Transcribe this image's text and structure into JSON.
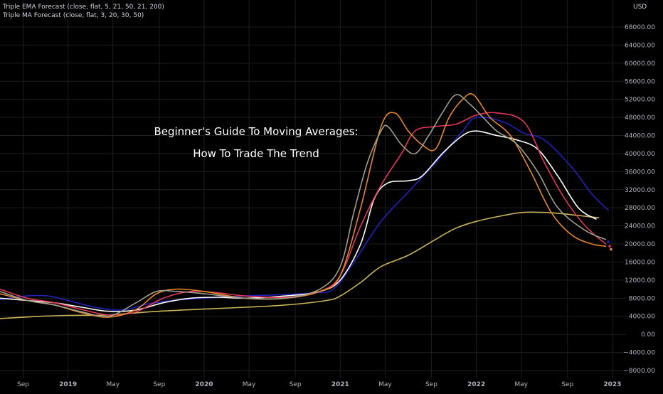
{
  "legend": {
    "line1": "Triple EMA Forecast (close, flat, 5, 21, 50, 21, 200)",
    "line2": "Triple MA Forecast (close, flat, 3, 20, 30, 50)"
  },
  "headline": {
    "line1": "Beginner's Guide To Moving Averages:",
    "line2": "How To Trade The Trend"
  },
  "axis": {
    "currency": "USD"
  },
  "colors": {
    "background": "#000000",
    "grid": "#1e1e1e",
    "axis_text": "#b2b5be"
  },
  "chart_data": {
    "type": "line",
    "title": "",
    "xlabel": "",
    "ylabel": "",
    "ylim": [
      -9000,
      72000
    ],
    "xlim": [
      2018.5,
      2023.1
    ],
    "x_ticks": [
      {
        "label": "Sep",
        "x": 2018.67,
        "bold": false
      },
      {
        "label": "2019",
        "x": 2019.0,
        "bold": true
      },
      {
        "label": "May",
        "x": 2019.33,
        "bold": false
      },
      {
        "label": "Sep",
        "x": 2019.67,
        "bold": false
      },
      {
        "label": "2020",
        "x": 2020.0,
        "bold": true
      },
      {
        "label": "May",
        "x": 2020.33,
        "bold": false
      },
      {
        "label": "Sep",
        "x": 2020.67,
        "bold": false
      },
      {
        "label": "2021",
        "x": 2021.0,
        "bold": true
      },
      {
        "label": "May",
        "x": 2021.33,
        "bold": false
      },
      {
        "label": "Sep",
        "x": 2021.67,
        "bold": false
      },
      {
        "label": "2022",
        "x": 2022.0,
        "bold": true
      },
      {
        "label": "May",
        "x": 2022.33,
        "bold": false
      },
      {
        "label": "Sep",
        "x": 2022.67,
        "bold": false
      },
      {
        "label": "2023",
        "x": 2023.0,
        "bold": true
      }
    ],
    "y_ticks": [
      {
        "label": "68000.00",
        "y": 68000
      },
      {
        "label": "64000.00",
        "y": 64000
      },
      {
        "label": "60000.00",
        "y": 60000
      },
      {
        "label": "56000.00",
        "y": 56000
      },
      {
        "label": "52000.00",
        "y": 52000
      },
      {
        "label": "48000.00",
        "y": 48000
      },
      {
        "label": "44000.00",
        "y": 44000
      },
      {
        "label": "40000.00",
        "y": 40000
      },
      {
        "label": "36000.00",
        "y": 36000
      },
      {
        "label": "32000.00",
        "y": 32000
      },
      {
        "label": "28000.00",
        "y": 28000
      },
      {
        "label": "24000.00",
        "y": 24000
      },
      {
        "label": "20000.00",
        "y": 20000
      },
      {
        "label": "16000.00",
        "y": 16000
      },
      {
        "label": "12000.00",
        "y": 12000
      },
      {
        "label": "8000.00",
        "y": 8000
      },
      {
        "label": "4000.00",
        "y": 4000
      },
      {
        "label": "0.00",
        "y": 0
      },
      {
        "label": "−4000.00",
        "y": -4000
      },
      {
        "label": "−8000.00",
        "y": -8000
      }
    ],
    "series": [
      {
        "color": "#c8b45a",
        "x": [
          2018.5,
          2018.8,
          2019.0,
          2019.3,
          2019.6,
          2020.0,
          2020.3,
          2020.6,
          2020.9,
          2021.0,
          2021.15,
          2021.3,
          2021.5,
          2021.7,
          2021.85,
          2022.0,
          2022.2,
          2022.35,
          2022.55,
          2022.75,
          2022.9
        ],
        "y": [
          3500,
          4000,
          4200,
          4300,
          5000,
          5600,
          6000,
          6500,
          7500,
          8500,
          11500,
          15000,
          17500,
          21000,
          23500,
          25000,
          26300,
          27000,
          26900,
          26300,
          25800
        ]
      },
      {
        "color": "#2222bb",
        "x": [
          2018.5,
          2018.7,
          2018.85,
          2019.0,
          2019.2,
          2019.4,
          2019.6,
          2019.8,
          2020.0,
          2020.3,
          2020.6,
          2020.8,
          2020.95,
          2021.1,
          2021.3,
          2021.5,
          2021.7,
          2021.9,
          2022.0,
          2022.2,
          2022.35,
          2022.5,
          2022.7,
          2022.85,
          2022.97
        ],
        "y": [
          7700,
          8500,
          8500,
          7500,
          6000,
          5400,
          6800,
          7600,
          8000,
          8500,
          8800,
          9200,
          10000,
          16000,
          25000,
          31500,
          38000,
          45000,
          48000,
          47000,
          44500,
          43000,
          37000,
          31000,
          27500
        ]
      },
      {
        "color": "#ffffff",
        "x": [
          2018.5,
          2018.7,
          2018.9,
          2019.1,
          2019.3,
          2019.5,
          2019.7,
          2019.9,
          2020.1,
          2020.3,
          2020.6,
          2020.85,
          2021.0,
          2021.15,
          2021.25,
          2021.35,
          2021.5,
          2021.6,
          2021.75,
          2021.9,
          2022.0,
          2022.15,
          2022.3,
          2022.45,
          2022.6,
          2022.75,
          2022.88
        ],
        "y": [
          8000,
          7500,
          7000,
          6000,
          5100,
          5400,
          7000,
          8000,
          8200,
          8000,
          8500,
          9500,
          12000,
          20000,
          30000,
          33500,
          34000,
          35000,
          40000,
          44000,
          45000,
          44000,
          43000,
          41000,
          35000,
          28000,
          25500
        ]
      },
      {
        "color": "#e2365a",
        "x": [
          2018.5,
          2018.7,
          2018.9,
          2019.1,
          2019.3,
          2019.5,
          2019.7,
          2019.9,
          2020.1,
          2020.3,
          2020.6,
          2020.85,
          2021.0,
          2021.15,
          2021.3,
          2021.45,
          2021.55,
          2021.7,
          2021.85,
          2022.0,
          2022.15,
          2022.35,
          2022.5,
          2022.65,
          2022.8,
          2022.95
        ],
        "y": [
          10000,
          8000,
          7000,
          5500,
          4300,
          5000,
          8000,
          9500,
          9200,
          8500,
          8200,
          9500,
          13000,
          24000,
          33000,
          40000,
          45000,
          46000,
          46500,
          48500,
          49000,
          47000,
          38000,
          30000,
          24000,
          20000
        ]
      },
      {
        "color": "#e5872d",
        "x": [
          2018.5,
          2018.7,
          2018.9,
          2019.1,
          2019.3,
          2019.5,
          2019.65,
          2019.8,
          2020.0,
          2020.3,
          2020.6,
          2020.85,
          2021.0,
          2021.15,
          2021.3,
          2021.4,
          2021.5,
          2021.6,
          2021.7,
          2021.8,
          2021.9,
          2021.98,
          2022.1,
          2022.25,
          2022.4,
          2022.55,
          2022.7,
          2022.85,
          2022.95
        ],
        "y": [
          9000,
          7500,
          6500,
          4800,
          3800,
          5500,
          9000,
          10000,
          9500,
          8000,
          8000,
          9500,
          13000,
          28000,
          46000,
          49000,
          45000,
          42000,
          41000,
          48000,
          52000,
          53000,
          48000,
          44000,
          36000,
          27000,
          22000,
          20000,
          19500
        ]
      },
      {
        "color": "#a0a08c",
        "x": [
          2018.5,
          2018.7,
          2018.9,
          2019.1,
          2019.3,
          2019.5,
          2019.65,
          2019.8,
          2020.0,
          2020.3,
          2020.6,
          2020.85,
          2021.0,
          2021.1,
          2021.2,
          2021.3,
          2021.35,
          2021.45,
          2021.55,
          2021.65,
          2021.75,
          2021.85,
          2021.95,
          2022.05,
          2022.15,
          2022.3,
          2022.45,
          2022.6,
          2022.8,
          2022.95
        ],
        "y": [
          9500,
          7500,
          6500,
          5000,
          4000,
          7000,
          9500,
          9500,
          9000,
          8000,
          8000,
          10000,
          15000,
          27000,
          38000,
          45000,
          46000,
          42000,
          40000,
          44000,
          49000,
          53000,
          51000,
          48000,
          45000,
          42000,
          36000,
          28000,
          23000,
          21000
        ]
      }
    ],
    "forecast_dots": [
      {
        "x": 2022.97,
        "y": 20500,
        "color": "#2222bb"
      },
      {
        "x": 2022.98,
        "y": 19500,
        "color": "#e2365a"
      },
      {
        "x": 2022.99,
        "y": 18800,
        "color": "#e5872d"
      }
    ]
  }
}
